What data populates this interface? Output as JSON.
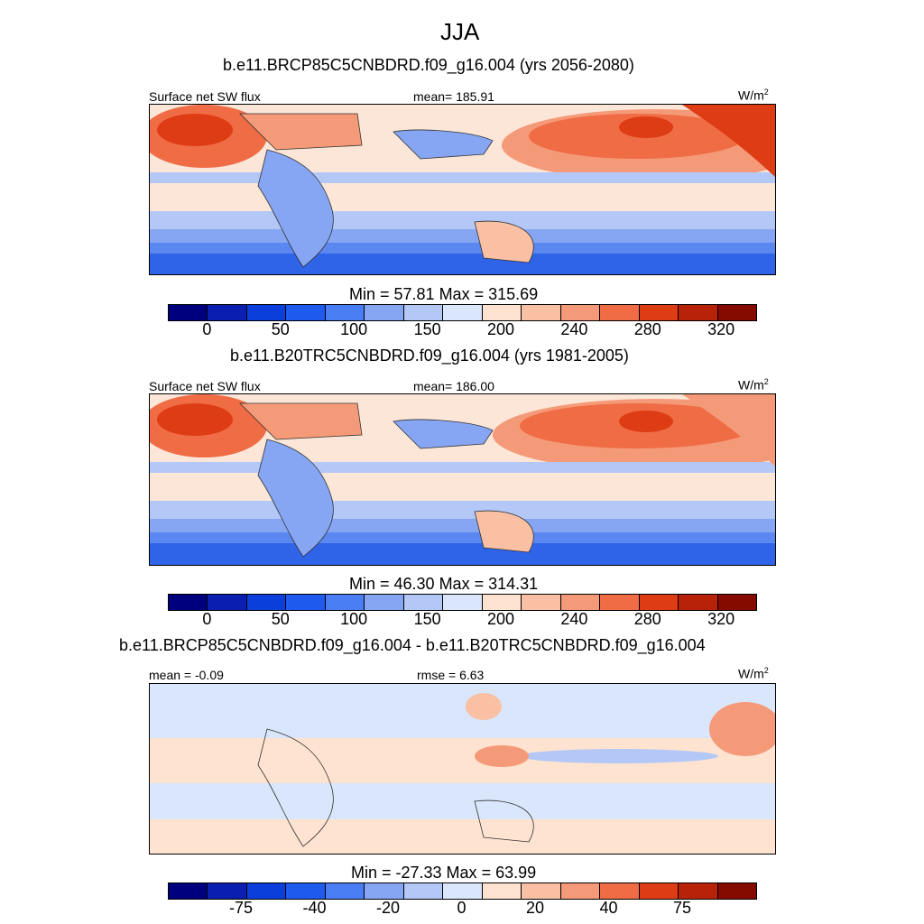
{
  "season": "JJA",
  "panels": [
    {
      "title": "b.e11.BRCP85C5CNBDRD.f09_g16.004 (yrs 2056-2080)",
      "left_label": "Surface net SW flux",
      "center_label": "mean= 185.91",
      "units": "W/m",
      "units_sup": "2",
      "minmax": "Min =  57.81 Max = 315.69",
      "ticks": [
        "0",
        "50",
        "100",
        "150",
        "200",
        "240",
        "280",
        "320"
      ]
    },
    {
      "title": "b.e11.B20TRC5CNBDRD.f09_g16.004 (yrs 1981-2005)",
      "left_label": "Surface net SW flux",
      "center_label": "mean= 186.00",
      "units": "W/m",
      "units_sup": "2",
      "minmax": "Min =  46.30 Max = 314.31",
      "ticks": [
        "0",
        "50",
        "100",
        "150",
        "200",
        "240",
        "280",
        "320"
      ]
    },
    {
      "title": "b.e11.BRCP85C5CNBDRD.f09_g16.004 - b.e11.B20TRC5CNBDRD.f09_g16.004",
      "left_label": "mean =  -0.09",
      "center_label": "rmse =   6.63",
      "units": "W/m",
      "units_sup": "2",
      "minmax": "Min = -27.33 Max =  63.99",
      "ticks": [
        "-75",
        "-40",
        "-20",
        "0",
        "20",
        "40",
        "75"
      ]
    }
  ],
  "colorbar_colors": [
    "#00007f",
    "#0a1fb0",
    "#0a3fdc",
    "#1f5aef",
    "#4a7ef5",
    "#86a6f3",
    "#b3c8f7",
    "#d9e6fb",
    "#fde3d0",
    "#f9c0a4",
    "#f59a78",
    "#ef6c45",
    "#de3c14",
    "#b82208",
    "#850a00"
  ]
}
